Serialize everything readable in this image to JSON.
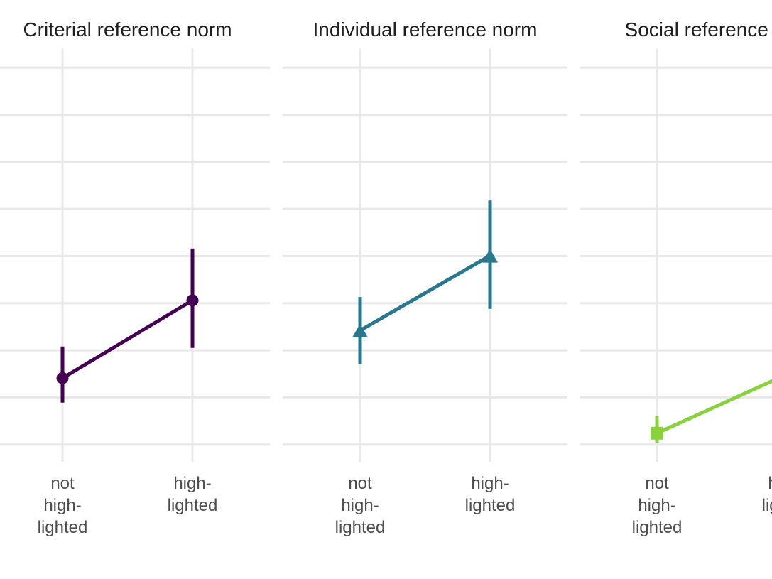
{
  "figure": {
    "background_color": "#ffffff",
    "grid_color": "#e8e8e8",
    "title_color": "#1f1f1f",
    "axis_label_color": "#4d4d4d"
  },
  "chart_data": {
    "type": "line",
    "description": "Three-facet interaction plot: mean points with vertical error bars connected by a line across two highlighting conditions; y-axis cropped out of frame at left, third facet cropped at right",
    "x_categories": [
      "not high-lighted",
      "high-lighted"
    ],
    "x_category_label_lines": [
      [
        "not",
        "high-",
        "lighted"
      ],
      [
        "high-",
        "lighted"
      ]
    ],
    "xlabel": "",
    "ylabel": "",
    "y_axis_labels_visible": false,
    "y_units_note": "values estimated in gridline-spacing units measured up from the bottom gridline (axis tick labels not visible in crop)",
    "grid": true,
    "ylim_units": [
      -0.37,
      8.4
    ],
    "facets": [
      {
        "title": "Criterial reference norm",
        "color": "#440154",
        "marker": "circle",
        "values": [
          1.41,
          3.06
        ],
        "ci_low": [
          0.89,
          2.05
        ],
        "ci_high": [
          2.08,
          4.16
        ]
      },
      {
        "title": "Individual reference norm",
        "color": "#2A788E",
        "marker": "triangle",
        "values": [
          2.42,
          4.01
        ],
        "ci_low": [
          1.71,
          2.88
        ],
        "ci_high": [
          3.13,
          5.18
        ]
      },
      {
        "title": "Social reference norm",
        "color": "#8BD03F",
        "marker": "square",
        "values": [
          0.24,
          1.49
        ],
        "ci_low": [
          0.04,
          null
        ],
        "ci_high": [
          0.61,
          null
        ]
      }
    ]
  }
}
